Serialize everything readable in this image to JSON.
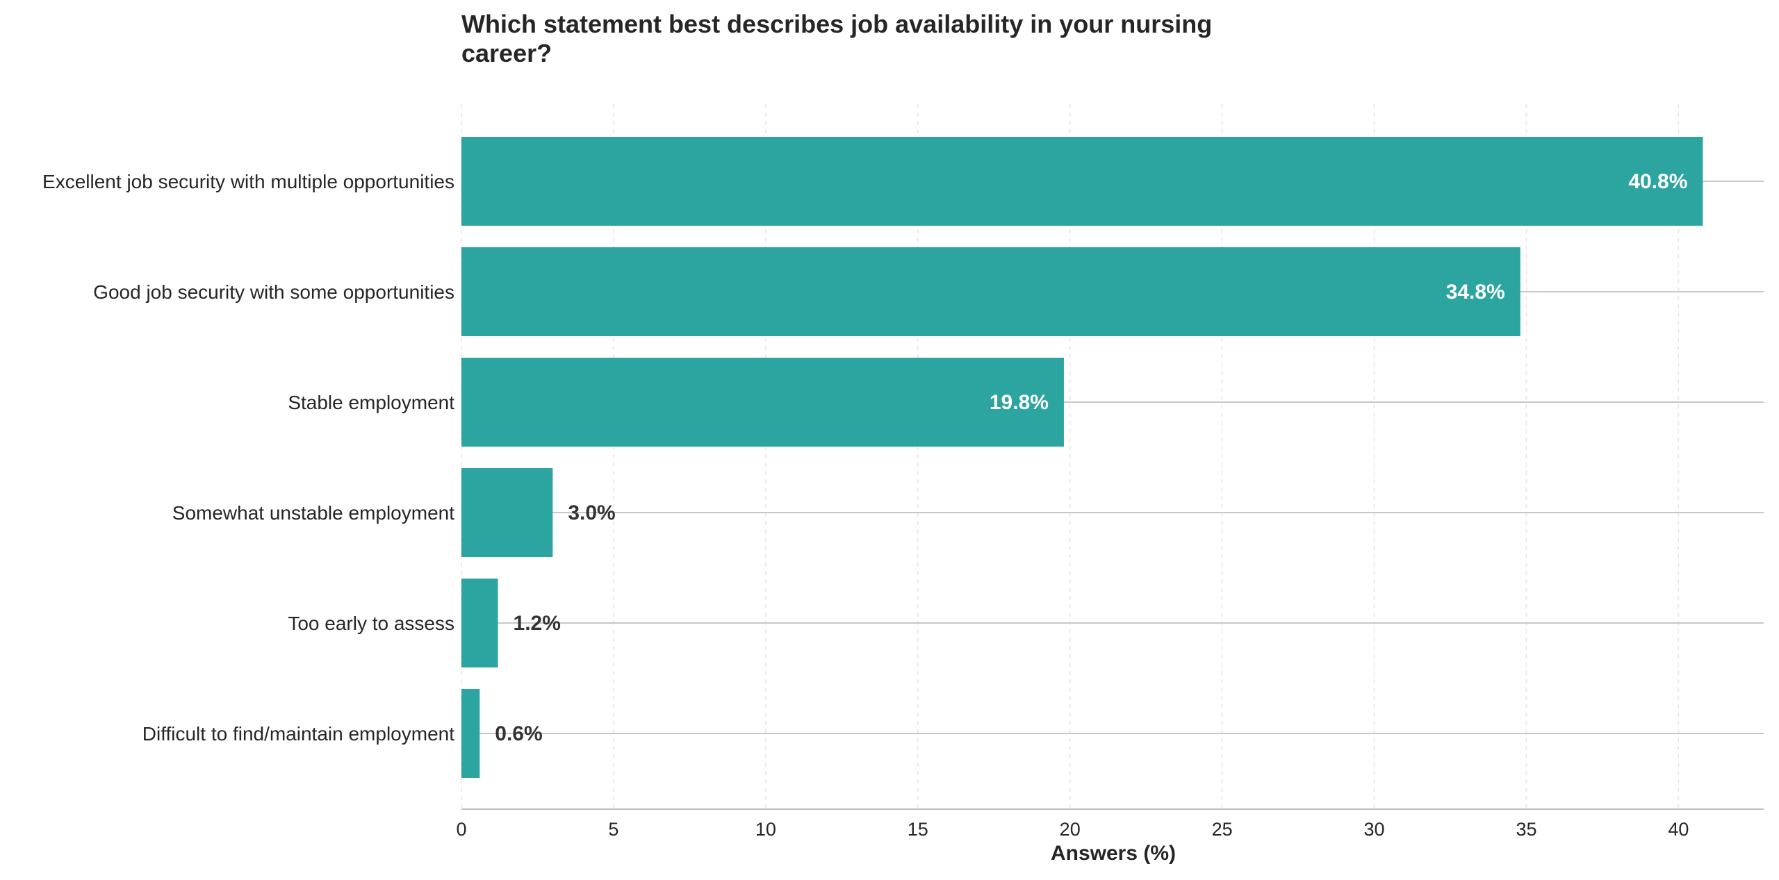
{
  "chart_data": {
    "type": "bar",
    "orientation": "horizontal",
    "title": "Which statement best describes job availability in your nursing career?",
    "xlabel": "Answers (%)",
    "ylabel": "",
    "categories": [
      "Excellent job security with multiple opportunities",
      "Good job security with some opportunities",
      "Stable employment",
      "Somewhat unstable employment",
      "Too early to assess",
      "Difficult to find/maintain employment"
    ],
    "values": [
      40.8,
      34.8,
      19.8,
      3.0,
      1.2,
      0.6
    ],
    "data_labels": [
      "40.8%",
      "34.8%",
      "19.8%",
      "3.0%",
      "1.2%",
      "0.6%"
    ],
    "xlim": [
      0,
      42.8
    ],
    "xticks": [
      0,
      5,
      10,
      15,
      20,
      25,
      30,
      35,
      40
    ],
    "grid": true,
    "bar_color": "#2ca4a0",
    "inside_label_color": "#ffffff",
    "outside_label_color": "#333333"
  }
}
